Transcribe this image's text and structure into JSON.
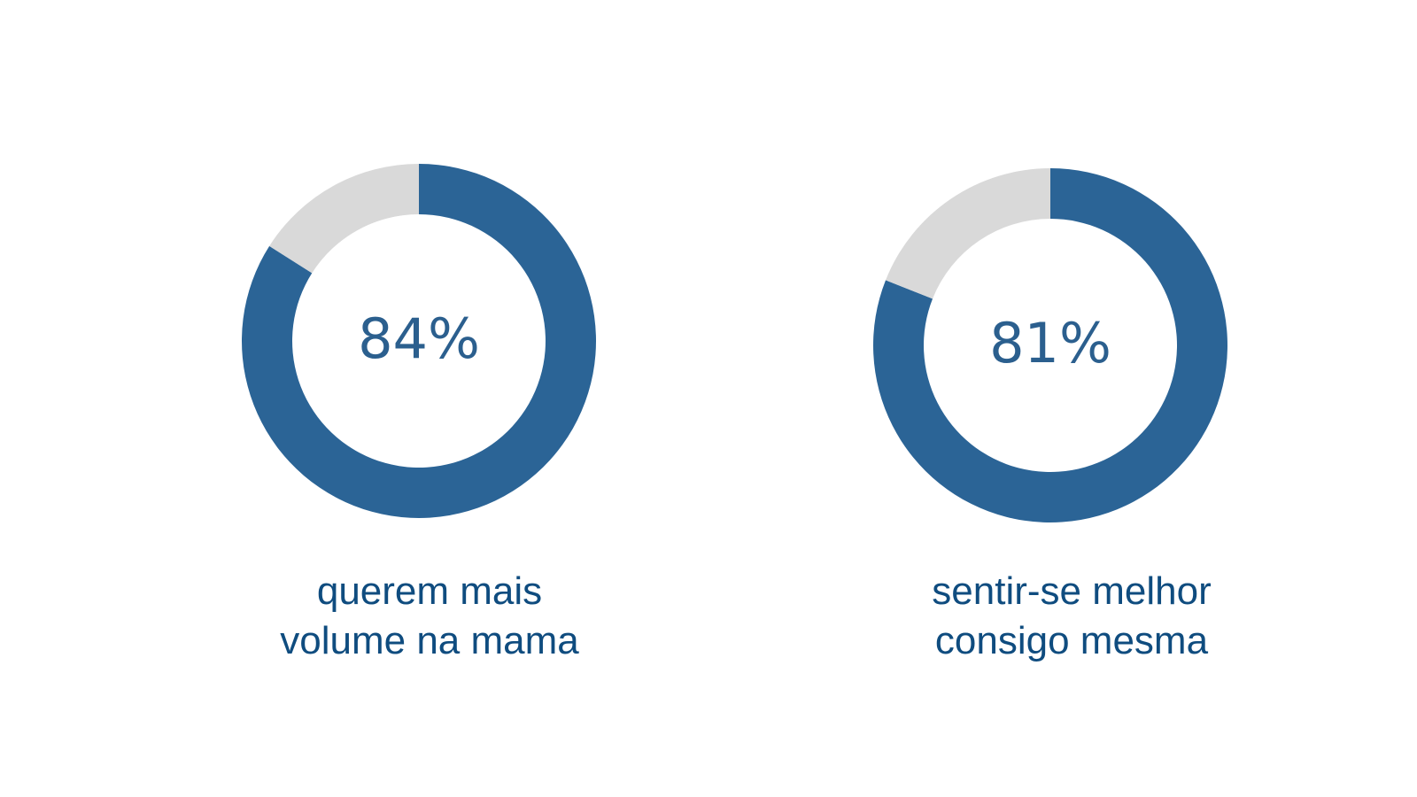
{
  "colors": {
    "filled": "#2b6496",
    "remainder": "#d9d9d9",
    "label": "#2b5f8e",
    "caption": "#0f4c7f",
    "background": "#ffffff"
  },
  "chart_data": [
    {
      "type": "pie",
      "variant": "donut",
      "center_label": "84%",
      "values": [
        84,
        16
      ],
      "caption_lines": [
        "querem mais",
        "volume na mama"
      ]
    },
    {
      "type": "pie",
      "variant": "donut",
      "center_label": "81%",
      "values": [
        81,
        19
      ],
      "caption_lines": [
        "sentir-se melhor",
        "consigo mesma"
      ]
    }
  ]
}
